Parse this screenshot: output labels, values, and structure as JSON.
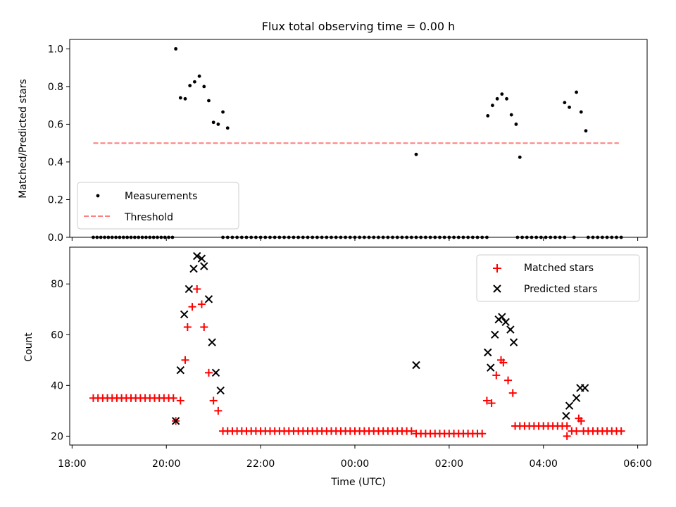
{
  "figure": {
    "title": "Flux total observing time = 0.00 h"
  },
  "chart_data": [
    {
      "type": "scatter",
      "title": "Flux total observing time = 0.00 h",
      "xlabel": "",
      "ylabel": "Matched/Predicted stars",
      "xlim_hours": [
        17.95,
        30.2
      ],
      "ylim": [
        0,
        1.05
      ],
      "yticks": [
        "0.0",
        "0.2",
        "0.4",
        "0.6",
        "0.8",
        "1.0"
      ],
      "grid": false,
      "legend_position": "lower-left",
      "series": [
        {
          "name": "Measurements",
          "type": "scatter",
          "color": "#000000",
          "marker": "dot",
          "points_hours": [
            [
              20.2,
              1.0
            ],
            [
              20.3,
              0.74
            ],
            [
              20.4,
              0.735
            ],
            [
              20.5,
              0.805
            ],
            [
              20.6,
              0.825
            ],
            [
              20.7,
              0.855
            ],
            [
              20.8,
              0.8
            ],
            [
              20.9,
              0.725
            ],
            [
              21.0,
              0.61
            ],
            [
              21.1,
              0.6
            ],
            [
              21.2,
              0.665
            ],
            [
              21.3,
              0.58
            ],
            [
              25.3,
              0.44
            ],
            [
              26.82,
              0.645
            ],
            [
              26.92,
              0.7
            ],
            [
              27.02,
              0.735
            ],
            [
              27.12,
              0.76
            ],
            [
              27.22,
              0.735
            ],
            [
              27.32,
              0.65
            ],
            [
              27.42,
              0.6
            ],
            [
              27.5,
              0.425
            ],
            [
              28.45,
              0.715
            ],
            [
              28.55,
              0.69
            ],
            [
              28.7,
              0.77
            ],
            [
              28.8,
              0.665
            ],
            [
              28.9,
              0.565
            ]
          ],
          "zero_points_hours": {
            "ranges": [
              [
                18.45,
                20.15,
                0.08
              ],
              [
                21.2,
                26.75,
                0.1
              ],
              [
                27.45,
                28.45,
                0.1
              ],
              [
                28.95,
                29.65,
                0.1
              ]
            ],
            "extra": [
              28.65
            ]
          }
        },
        {
          "name": "Threshold",
          "type": "line",
          "style": "dashed",
          "color": "#ff7f7f",
          "x_hours": [
            18.45,
            29.6
          ],
          "y": [
            0.5,
            0.5
          ]
        }
      ]
    },
    {
      "type": "scatter",
      "xlabel": "Time (UTC)",
      "ylabel": "Count",
      "xlim_hours": [
        17.95,
        30.2
      ],
      "ylim": [
        16.5,
        94.5
      ],
      "xticks": [
        {
          "label": "18:00",
          "hours": 18
        },
        {
          "label": "20:00",
          "hours": 20
        },
        {
          "label": "22:00",
          "hours": 22
        },
        {
          "label": "00:00",
          "hours": 24
        },
        {
          "label": "02:00",
          "hours": 26
        },
        {
          "label": "04:00",
          "hours": 28
        },
        {
          "label": "06:00",
          "hours": 30
        }
      ],
      "yticks": [
        "20",
        "40",
        "60",
        "80"
      ],
      "grid": false,
      "legend_position": "top-right",
      "series": [
        {
          "name": "Matched stars",
          "type": "scatter",
          "color": "#ff0000",
          "marker": "plus",
          "points_hours": [
            [
              20.2,
              26
            ],
            [
              20.3,
              34
            ],
            [
              20.4,
              50
            ],
            [
              20.45,
              63
            ],
            [
              20.55,
              71
            ],
            [
              20.65,
              78
            ],
            [
              20.75,
              72
            ],
            [
              20.8,
              63
            ],
            [
              20.9,
              45
            ],
            [
              21.0,
              34
            ],
            [
              21.1,
              30
            ],
            [
              25.3,
              21
            ],
            [
              26.8,
              34
            ],
            [
              26.9,
              33
            ],
            [
              27.0,
              44
            ],
            [
              27.1,
              50
            ],
            [
              27.15,
              49
            ],
            [
              27.25,
              42
            ],
            [
              27.35,
              37
            ],
            [
              28.5,
              20
            ],
            [
              28.6,
              22
            ],
            [
              28.7,
              22
            ],
            [
              28.75,
              27
            ],
            [
              28.8,
              26
            ]
          ],
          "constant_ranges_hours": [
            [
              18.45,
              20.15,
              0.1,
              35
            ],
            [
              21.2,
              25.2,
              0.1,
              22
            ],
            [
              25.4,
              26.7,
              0.1,
              21
            ],
            [
              27.4,
              28.45,
              0.1,
              24
            ],
            [
              28.85,
              29.65,
              0.1,
              22
            ]
          ]
        },
        {
          "name": "Predicted stars",
          "type": "scatter",
          "color": "#000000",
          "marker": "x",
          "points_hours": [
            [
              20.2,
              26
            ],
            [
              20.3,
              46
            ],
            [
              20.38,
              68
            ],
            [
              20.48,
              78
            ],
            [
              20.58,
              86
            ],
            [
              20.65,
              91
            ],
            [
              20.75,
              90
            ],
            [
              20.8,
              87
            ],
            [
              20.9,
              74
            ],
            [
              20.97,
              57
            ],
            [
              21.05,
              45
            ],
            [
              21.15,
              38
            ],
            [
              25.3,
              48
            ],
            [
              26.82,
              53
            ],
            [
              26.88,
              47
            ],
            [
              26.97,
              60
            ],
            [
              27.05,
              66
            ],
            [
              27.12,
              67
            ],
            [
              27.2,
              65
            ],
            [
              27.3,
              62
            ],
            [
              27.37,
              57
            ],
            [
              28.48,
              28
            ],
            [
              28.55,
              32
            ],
            [
              28.7,
              35
            ],
            [
              28.78,
              39
            ],
            [
              28.88,
              39
            ]
          ]
        }
      ]
    }
  ]
}
